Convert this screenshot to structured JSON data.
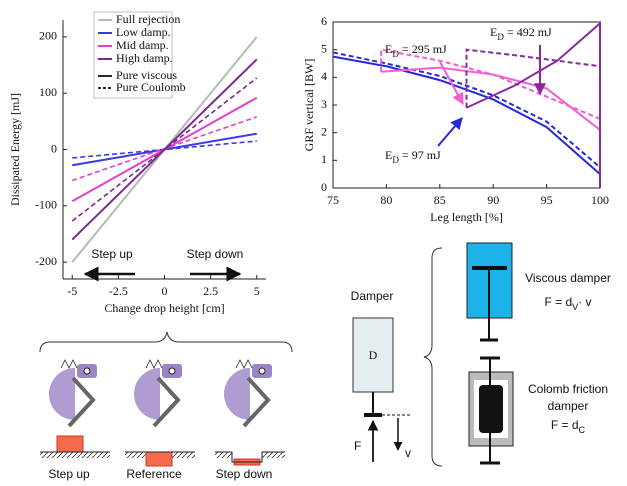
{
  "chart_data": [
    {
      "type": "line",
      "title": null,
      "xlabel": "Change drop height [cm]",
      "ylabel": "Dissipated Energy [mJ]",
      "x": [
        -5,
        5
      ],
      "series": [
        {
          "name": "Full rejection",
          "color": "#b8b8b8",
          "values": [
            -200,
            200
          ]
        },
        {
          "name": "Low damp.",
          "color": "#3a3ae0",
          "values": [
            -28,
            28
          ],
          "coulomb_values": [
            -15,
            15
          ]
        },
        {
          "name": "Mid damp.",
          "color": "#e040d0",
          "values": [
            -92,
            92
          ],
          "coulomb_values": [
            -55,
            58
          ]
        },
        {
          "name": "High damp.",
          "color": "#7a2a8a",
          "values": [
            -160,
            160
          ],
          "coulomb_values": [
            -127,
            127
          ]
        }
      ],
      "line_styles": [
        "Pure viscous",
        "Pure Coulomb"
      ],
      "annotations": [
        "Step up",
        "Step down"
      ],
      "xlim": [
        -5.5,
        5.5
      ],
      "xticks": [
        -5,
        -2.5,
        0,
        2.5,
        5
      ],
      "ylim": [
        -230,
        230
      ],
      "yticks": [
        -200,
        -100,
        0,
        100,
        200
      ]
    },
    {
      "type": "line",
      "xlabel": "Leg length [%]",
      "ylabel": "GRF vertical [BW]",
      "series": [
        {
          "color": "#2828d8",
          "dash": false,
          "x": [
            75,
            80,
            85,
            90,
            95,
            100
          ],
          "values": [
            4.75,
            4.4,
            3.9,
            3.2,
            2.2,
            0.5
          ]
        },
        {
          "color": "#2828d8",
          "dash": true,
          "x": [
            75,
            80,
            85,
            90,
            95,
            100
          ],
          "values": [
            4.9,
            4.5,
            4.05,
            3.35,
            2.4,
            0.75
          ]
        },
        {
          "color": "#f060d0",
          "dash": false,
          "x": [
            79.5,
            85,
            90,
            95,
            100
          ],
          "values": [
            4.2,
            4.35,
            4.1,
            3.6,
            2.1
          ]
        },
        {
          "color": "#f060d0",
          "dash": true,
          "x": [
            79.5,
            79.5,
            85,
            90,
            95,
            100
          ],
          "values": [
            4.2,
            5.0,
            4.6,
            4.1,
            3.3,
            2.5
          ]
        },
        {
          "color": "#8a2a9a",
          "dash": false,
          "x": [
            87.5,
            92,
            96,
            100,
            100
          ],
          "values": [
            2.9,
            3.7,
            4.6,
            5.95,
            0
          ]
        },
        {
          "color": "#8a2a9a",
          "dash": true,
          "x": [
            87.5,
            87.5,
            92,
            96,
            100
          ],
          "values": [
            2.9,
            5.0,
            4.8,
            4.6,
            4.4
          ]
        }
      ],
      "annotations": [
        {
          "main": "E",
          "sub": "D",
          "tail": " = 295 mJ"
        },
        {
          "main": "E",
          "sub": "D",
          "tail": " = 492 mJ"
        },
        {
          "main": "E",
          "sub": "D",
          "tail": " = 97 mJ"
        }
      ],
      "xlim": [
        75,
        100
      ],
      "xticks": [
        75,
        80,
        85,
        90,
        95,
        100
      ],
      "ylim": [
        0,
        6
      ],
      "yticks": [
        0,
        1,
        2,
        3,
        4,
        5,
        6
      ]
    }
  ],
  "diagram": {
    "steps": [
      "Step up",
      "Reference",
      "Step down"
    ],
    "damper": {
      "title": "Damper",
      "symbol": "D",
      "force": "F",
      "velocity": "v"
    },
    "viscous": {
      "name": "Viscous damper",
      "formula": {
        "main": "F = d",
        "sub": "V",
        "tail": "· v"
      }
    },
    "coulomb": {
      "name": [
        "Colomb friction",
        "damper"
      ],
      "formula": {
        "main": "F = d",
        "sub": "C"
      }
    }
  }
}
